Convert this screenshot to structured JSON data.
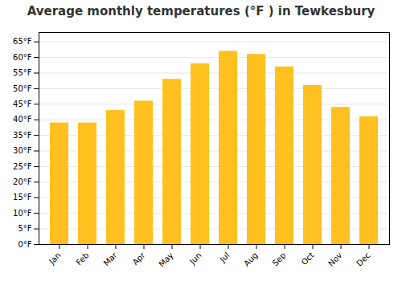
{
  "chart_data": {
    "type": "bar",
    "title": "Average monthly temperatures (°F ) in Tewkesbury",
    "categories": [
      "Jan",
      "Feb",
      "Mar",
      "Apr",
      "May",
      "Jun",
      "Jul",
      "Aug",
      "Sep",
      "Oct",
      "Nov",
      "Dec"
    ],
    "values": [
      39,
      39,
      43,
      46,
      53,
      58,
      62,
      61,
      57,
      51,
      44,
      41
    ],
    "color": "#FFC020",
    "ylim": [
      0,
      68
    ],
    "yticks": [
      {
        "value": 0,
        "label": "0°F"
      },
      {
        "value": 5,
        "label": "5°F"
      },
      {
        "value": 10,
        "label": "10°F"
      },
      {
        "value": 15,
        "label": "15°F"
      },
      {
        "value": 20,
        "label": "20°F"
      },
      {
        "value": 25,
        "label": "25°F"
      },
      {
        "value": 30,
        "label": "30°F"
      },
      {
        "value": 35,
        "label": "35°F"
      },
      {
        "value": 40,
        "label": "40°F"
      },
      {
        "value": 45,
        "label": "45°F"
      },
      {
        "value": 50,
        "label": "50°F"
      },
      {
        "value": 55,
        "label": "55°F"
      },
      {
        "value": 60,
        "label": "60°F"
      },
      {
        "value": 65,
        "label": "65°F"
      }
    ],
    "grid": true
  }
}
